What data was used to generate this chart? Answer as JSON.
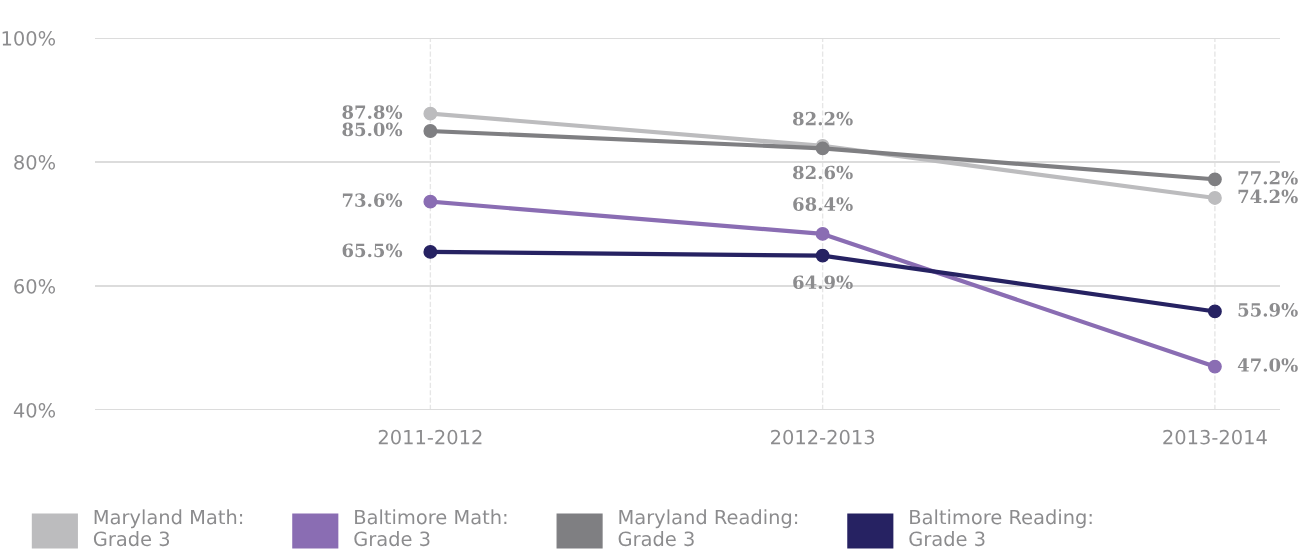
{
  "chart_data": {
    "type": "line",
    "categories": [
      "2011-2012",
      "2012-2013",
      "2013-2014"
    ],
    "series": [
      {
        "name": "Maryland Math:\nGrade 3",
        "color": "#bcbcbe",
        "values": [
          87.8,
          82.6,
          74.2
        ],
        "value_labels": [
          "87.8%",
          "82.6%",
          "74.2%"
        ]
      },
      {
        "name": "Baltimore Math:\nGrade 3",
        "color": "#8a6db3",
        "values": [
          73.6,
          68.4,
          47.0
        ],
        "value_labels": [
          "73.6%",
          "68.4%",
          "47.0%"
        ]
      },
      {
        "name": "Maryland Reading:\nGrade 3",
        "color": "#7f7f82",
        "values": [
          85.0,
          82.2,
          77.2
        ],
        "value_labels": [
          "85.0%",
          "82.2%",
          "77.2%"
        ]
      },
      {
        "name": "Baltimore Reading:\nGrade 3",
        "color": "#262262",
        "values": [
          65.5,
          64.9,
          55.9
        ],
        "value_labels": [
          "65.5%",
          "64.9%",
          "55.9%"
        ]
      }
    ],
    "ylim": [
      40,
      100
    ],
    "yticks": [
      {
        "value": 40,
        "label": "40%"
      },
      {
        "value": 60,
        "label": "60%"
      },
      {
        "value": 80,
        "label": "80%"
      },
      {
        "value": 100,
        "label": "100%"
      }
    ],
    "grid": true,
    "legend": "bottom",
    "marker": "circle",
    "line_style": "solid"
  }
}
